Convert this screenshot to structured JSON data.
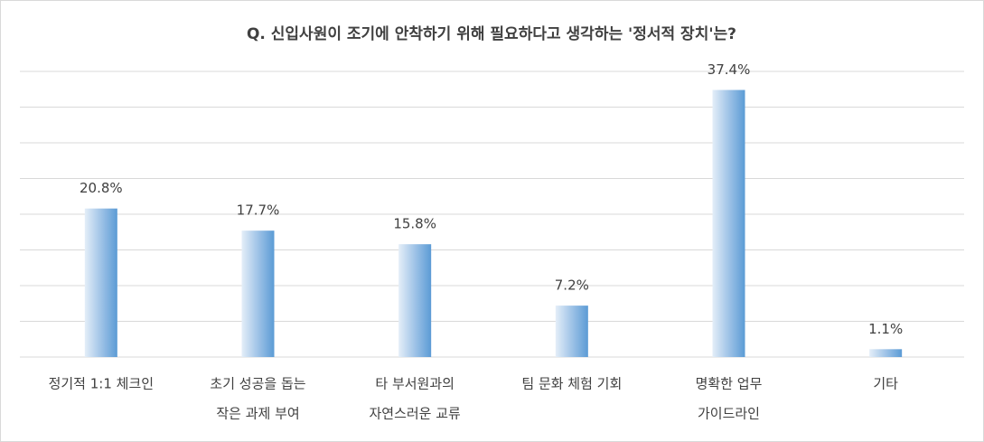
{
  "chart_data": {
    "type": "bar",
    "title": "Q. 신입사원이 조기에 안착하기 위해 필요하다고 생각하는 '정서적 장치'는?",
    "categories": [
      [
        "정기적 1:1 체크인"
      ],
      [
        "초기 성공을 돕는",
        "작은 과제 부여"
      ],
      [
        "타 부서원과의",
        "자연스러운 교류"
      ],
      [
        "팀 문화 체험 기회"
      ],
      [
        "명확한 업무",
        "가이드라인"
      ],
      [
        "기타"
      ]
    ],
    "values": [
      20.8,
      17.7,
      15.8,
      7.2,
      37.4,
      1.1
    ],
    "value_labels": [
      "20.8%",
      "17.7%",
      "15.8%",
      "7.2%",
      "37.4%",
      "1.1%"
    ],
    "color": "#5b9bd5",
    "ylim": [
      0,
      40
    ],
    "yticks": [
      0,
      5,
      10,
      15,
      20,
      25,
      30,
      35,
      40
    ],
    "grid": true
  }
}
